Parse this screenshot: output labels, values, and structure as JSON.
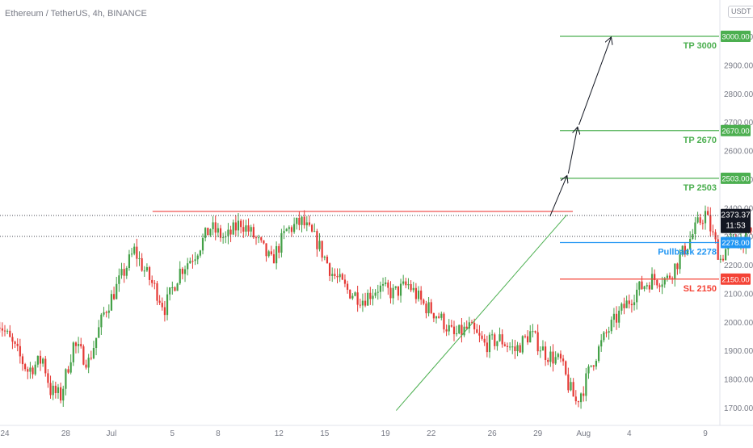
{
  "header": {
    "symbol_title": "Ethereum / TetherUS, 4h, BINANCE",
    "currency": "USDT"
  },
  "colors": {
    "up": "#26a69a",
    "up_body": "#43a047",
    "down": "#e53935",
    "resistance": "#ef5350",
    "tp": "#4caf50",
    "pullback": "#2196f3",
    "sl": "#f44336",
    "trend": "#4caf50",
    "arrow": "#131722",
    "current_price_bg": "#131722"
  },
  "chart_data": {
    "type": "candlestick",
    "title": "Ethereum / TetherUS, 4h, BINANCE",
    "y_range": [
      1660,
      3090
    ],
    "y_ticks": [
      "3000.00",
      "2900.00",
      "2800.00",
      "2700.00",
      "2600.00",
      "2500.00",
      "2400.00",
      "2300.00",
      "2200.00",
      "2100.00",
      "2000.00",
      "1900.00",
      "1800.00",
      "1700.00"
    ],
    "x_range_day": [
      23.8,
      40.2
    ],
    "x_ticks": [
      {
        "day": 24,
        "label": "24"
      },
      {
        "day": 28,
        "label": "28"
      },
      {
        "day": 31,
        "label": "Jul"
      },
      {
        "day": 35,
        "label": "5"
      },
      {
        "day": 38,
        "label": "8"
      },
      {
        "day": 42,
        "label": "12"
      },
      {
        "day": 45,
        "label": "15"
      },
      {
        "day": 49,
        "label": "19"
      },
      {
        "day": 52,
        "label": "22"
      },
      {
        "day": 56,
        "label": "26"
      },
      {
        "day": 59,
        "label": "29"
      },
      {
        "day": 62,
        "label": "Aug"
      },
      {
        "day": 65,
        "label": "4"
      },
      {
        "day": 70,
        "label": "9"
      }
    ],
    "x_ticks_note": "day numbers continue after June 30: Jul N = day 30+N",
    "bars_per_day": 6,
    "first_bar_day": 23.5,
    "close_anchors": [
      [
        0,
        2010
      ],
      [
        6,
        1920
      ],
      [
        12,
        1830
      ],
      [
        18,
        1870
      ],
      [
        21,
        1760
      ],
      [
        25,
        1740
      ],
      [
        30,
        1920
      ],
      [
        36,
        1860
      ],
      [
        42,
        2030
      ],
      [
        48,
        2140
      ],
      [
        54,
        2250
      ],
      [
        58,
        2180
      ],
      [
        62,
        2120
      ],
      [
        66,
        2050
      ],
      [
        72,
        2180
      ],
      [
        78,
        2240
      ],
      [
        84,
        2330
      ],
      [
        90,
        2290
      ],
      [
        96,
        2350
      ],
      [
        102,
        2290
      ],
      [
        108,
        2210
      ],
      [
        114,
        2320
      ],
      [
        120,
        2350
      ],
      [
        126,
        2280
      ],
      [
        132,
        2170
      ],
      [
        138,
        2110
      ],
      [
        144,
        2080
      ],
      [
        150,
        2120
      ],
      [
        156,
        2100
      ],
      [
        162,
        2130
      ],
      [
        168,
        2060
      ],
      [
        174,
        2020
      ],
      [
        180,
        1950
      ],
      [
        186,
        1980
      ],
      [
        192,
        1920
      ],
      [
        198,
        1940
      ],
      [
        204,
        1900
      ],
      [
        210,
        1960
      ],
      [
        216,
        1890
      ],
      [
        222,
        1860
      ],
      [
        225,
        1780
      ],
      [
        228,
        1720
      ],
      [
        231,
        1770
      ],
      [
        234,
        1850
      ],
      [
        240,
        1960
      ],
      [
        246,
        2040
      ],
      [
        252,
        2110
      ],
      [
        258,
        2150
      ],
      [
        264,
        2150
      ],
      [
        270,
        2240
      ],
      [
        276,
        2340
      ],
      [
        279,
        2380
      ],
      [
        282,
        2300
      ],
      [
        285,
        2220
      ],
      [
        288,
        2270
      ],
      [
        294,
        2290
      ],
      [
        300,
        2330
      ],
      [
        305,
        2375
      ]
    ],
    "bar_count": 306,
    "current_price": "2373.37",
    "countdown": "11:53",
    "levels": [
      {
        "label": "TP 3000",
        "tag": "3000.00",
        "price": 3000,
        "kind": "tp"
      },
      {
        "label": "TP 2670",
        "tag": "2670.00",
        "price": 2670,
        "kind": "tp"
      },
      {
        "label": "TP 2503",
        "tag": "2503.00",
        "price": 2503,
        "kind": "tp"
      },
      {
        "label": "Pullback 2278",
        "tag": "2278.00",
        "price": 2278,
        "kind": "pullback"
      },
      {
        "label": "SL 2150",
        "tag": "2150.00",
        "price": 2150,
        "kind": "sl"
      }
    ],
    "resistance": {
      "price": 2387,
      "from_day": 33.7,
      "to_day": 61.3
    },
    "dotted_lines": [
      2373,
      2300
    ],
    "trendline": {
      "from": {
        "day": 49.7,
        "price": 1690
      },
      "to": {
        "day": 60.9,
        "price": 2375
      }
    },
    "projection_arrows": [
      {
        "from": {
          "day": 59.8,
          "price": 2370
        },
        "to": {
          "day": 60.9,
          "price": 2510
        }
      },
      {
        "from": {
          "day": 61.0,
          "price": 2520
        },
        "to": {
          "day": 61.6,
          "price": 2680
        }
      },
      {
        "from": {
          "day": 61.7,
          "price": 2690
        },
        "to": {
          "day": 63.8,
          "price": 2995
        }
      }
    ]
  }
}
